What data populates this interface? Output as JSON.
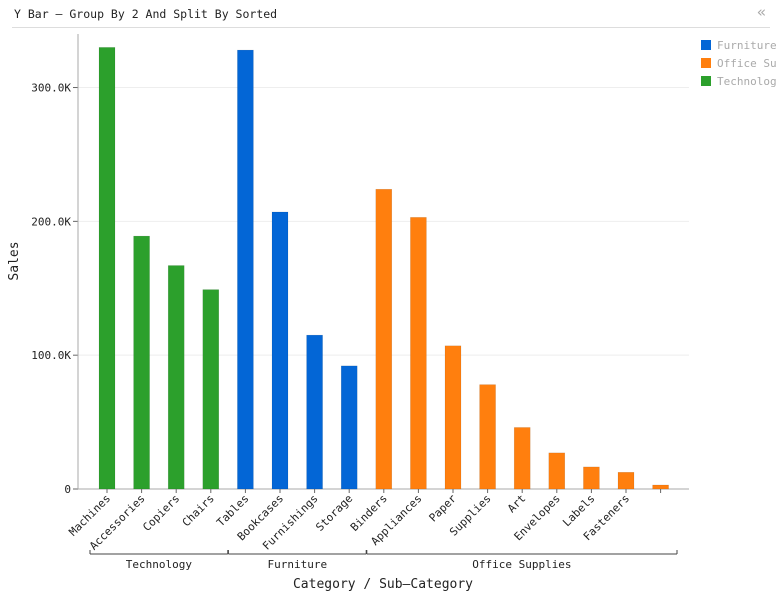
{
  "header": {
    "title": "Y Bar – Group By 2 And Split By Sorted",
    "collapse_icon": "«"
  },
  "legend": [
    {
      "name": "Furniture",
      "color": "#0366d6"
    },
    {
      "name": "Office Supplies",
      "color": "#ff7f0e"
    },
    {
      "name": "Technology",
      "color": "#2ca02c"
    }
  ],
  "chart_data": {
    "type": "bar",
    "xlabel": "Category / Sub–Category",
    "ylabel": "Sales",
    "ylim": [
      0,
      340000
    ],
    "yticks": [
      {
        "value": 0,
        "label": "0"
      },
      {
        "value": 100000,
        "label": "100.0K"
      },
      {
        "value": 200000,
        "label": "200.0K"
      },
      {
        "value": 300000,
        "label": "300.0K"
      }
    ],
    "grid": true,
    "legend_position": "top-right",
    "groups": [
      {
        "name": "Technology",
        "series": "Technology",
        "bars": [
          {
            "category": "Machines",
            "value": 330000
          },
          {
            "category": "Accessories",
            "value": 189000
          },
          {
            "category": "Copiers",
            "value": 167000
          },
          {
            "category": "Chairs",
            "value": 149000,
            "series": "Technology"
          }
        ]
      },
      {
        "name": "Furniture",
        "series": "Furniture",
        "bars": [
          {
            "category": "Tables",
            "value": 328000
          },
          {
            "category": "Bookcases",
            "value": 207000
          },
          {
            "category": "Furnishings",
            "value": 115000
          },
          {
            "category": "Storage",
            "value": 92000
          }
        ]
      },
      {
        "name": "Office Supplies",
        "series": "Office Supplies",
        "bars": [
          {
            "category": "Binders",
            "value": 224000
          },
          {
            "category": "Appliances",
            "value": 203000
          },
          {
            "category": "Paper",
            "value": 107000
          },
          {
            "category": "Supplies",
            "value": 78000
          },
          {
            "category": "Art",
            "value": 46000
          },
          {
            "category": "Envelopes",
            "value": 27000
          },
          {
            "category": "Labels",
            "value": 16500
          },
          {
            "category": "Fasteners",
            "value": 12500
          },
          {
            "category": "",
            "value": 3000
          }
        ]
      }
    ]
  }
}
